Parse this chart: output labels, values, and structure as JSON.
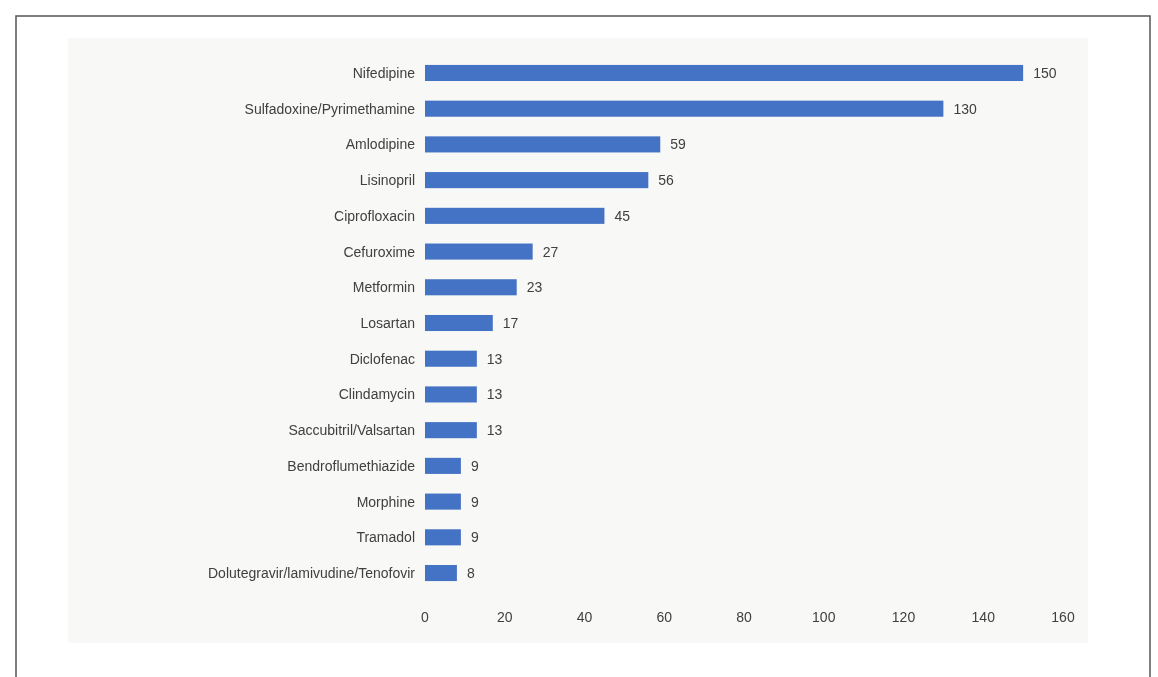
{
  "chart_data": {
    "type": "bar",
    "orientation": "horizontal",
    "categories": [
      "Nifedipine",
      "Sulfadoxine/Pyrimethamine",
      "Amlodipine",
      "Lisinopril",
      "Ciprofloxacin",
      "Cefuroxime",
      "Metformin",
      "Losartan",
      "Diclofenac",
      "Clindamycin",
      "Saccubitril/Valsartan",
      "Bendroflumethiazide",
      "Morphine",
      "Tramadol",
      "Dolutegravir/lamivudine/Tenofovir"
    ],
    "values": [
      150,
      130,
      59,
      56,
      45,
      27,
      23,
      17,
      13,
      13,
      13,
      9,
      9,
      9,
      8
    ],
    "color": "#4472c4",
    "data_labels": true,
    "xlim": [
      0,
      160
    ],
    "xticks": [
      0,
      20,
      40,
      60,
      80,
      100,
      120,
      140,
      160
    ],
    "grid": false
  }
}
